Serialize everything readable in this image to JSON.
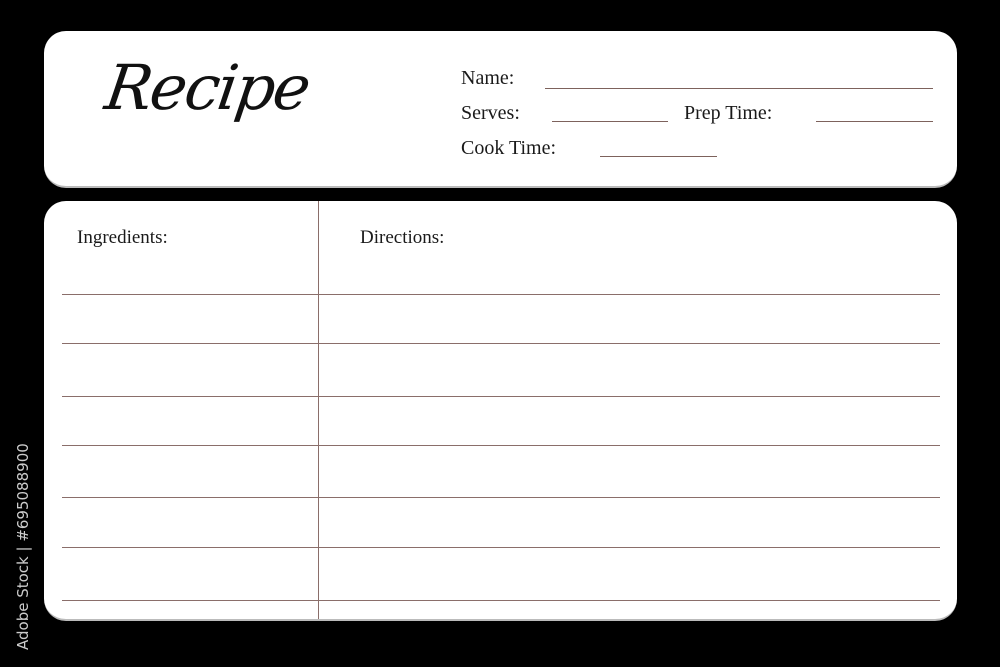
{
  "header": {
    "title": "Recipe",
    "fields": {
      "name": "Name:",
      "serves": "Serves:",
      "prep_time": "Prep Time:",
      "cook_time": "Cook Time:"
    }
  },
  "body": {
    "ingredients_label": "Ingredients:",
    "directions_label": "Directions:",
    "line_count": 7
  },
  "colors": {
    "background": "#000000",
    "card": "#ffffff",
    "rule_lines": "#8a6e6a"
  },
  "watermark": "Adobe Stock | #695088900"
}
